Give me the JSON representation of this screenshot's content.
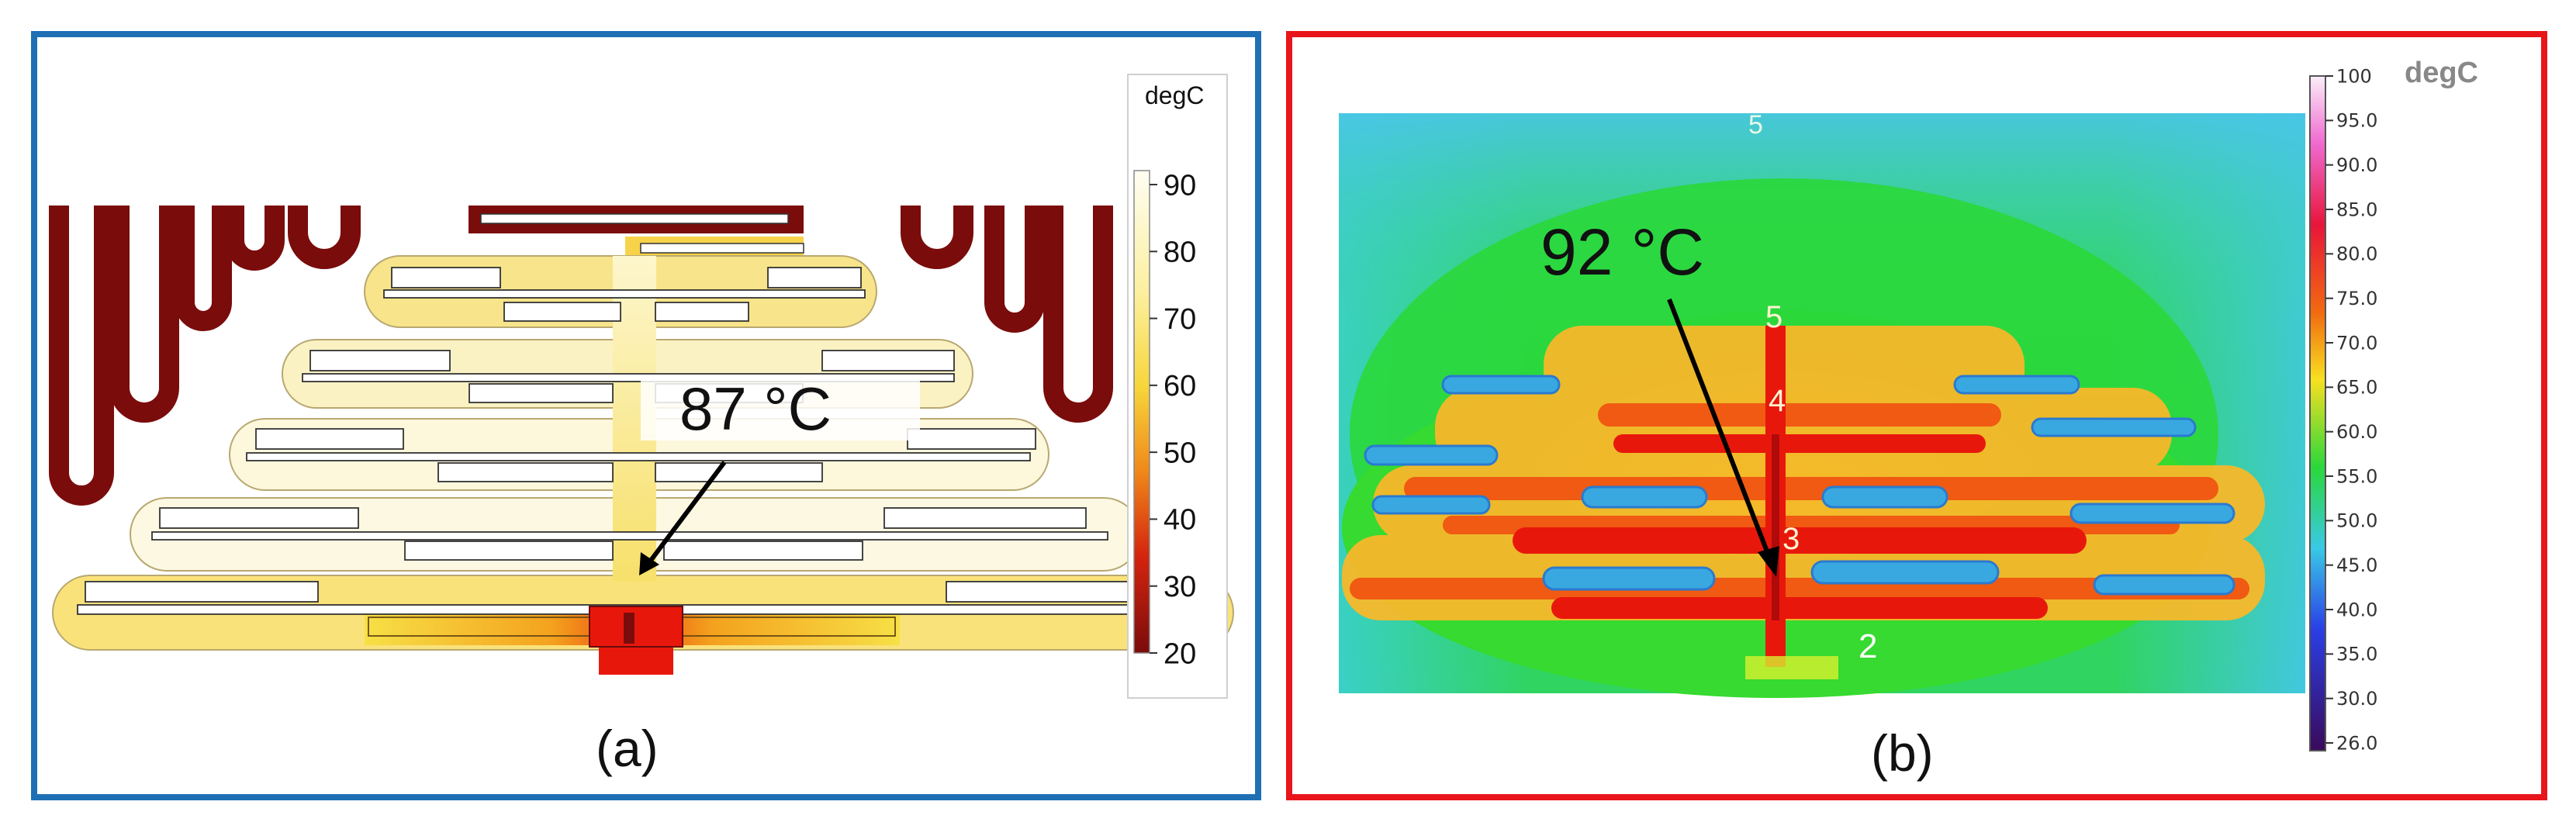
{
  "panel_a": {
    "caption": "(a)",
    "annotation": "87 °C",
    "colorbar": {
      "unit": "degC",
      "ticks": [
        "90",
        "80",
        "70",
        "60",
        "50",
        "40",
        "30",
        "20"
      ]
    }
  },
  "panel_b": {
    "caption": "(b)",
    "annotation": "92 °C",
    "point_labels": [
      "5",
      "5",
      "4",
      "3",
      "2"
    ],
    "colorbar": {
      "unit": "degC",
      "ticks": [
        "100",
        "95.0",
        "90.0",
        "85.0",
        "80.0",
        "75.0",
        "70.0",
        "65.0",
        "60.0",
        "55.0",
        "50.0",
        "45.0",
        "40.0",
        "35.0",
        "30.0",
        "26.0"
      ]
    }
  },
  "colors": {
    "panel_a_border": "#1f6fb5",
    "panel_b_border": "#e8151b",
    "hot": "#e8170c",
    "warm": "#f7d53a",
    "cold_conductor": "#7a0c0c",
    "ir_background": "#2ad83a",
    "ir_cool": "#39c9e6"
  }
}
